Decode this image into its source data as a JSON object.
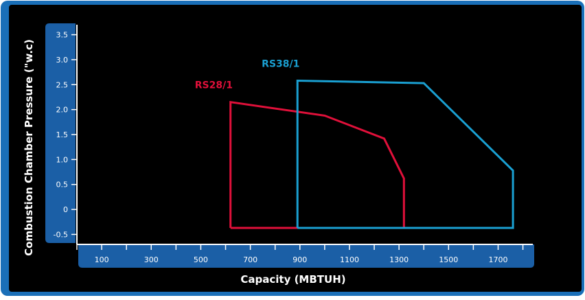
{
  "chart_data": {
    "type": "line",
    "title": "",
    "xlabel": "Capacity (MBTUH)",
    "ylabel": "Combustion Chamber Pressure (\"w.c)",
    "x_ticks": [
      100,
      300,
      500,
      700,
      900,
      1100,
      1300,
      1500,
      1700
    ],
    "y_ticks": [
      -0.5,
      0,
      0.5,
      1.0,
      1.5,
      2.0,
      2.5,
      3.0,
      3.5
    ],
    "y_tick_labels": [
      "-0.5",
      "0",
      "0.5",
      "1.0",
      "1.5",
      "2.0",
      "2.5",
      "3.0",
      "3.5"
    ],
    "xlim": [
      0,
      1840
    ],
    "ylim": [
      -0.7,
      3.7
    ],
    "grid": false,
    "legend": "inline-labels",
    "series": [
      {
        "name": "RS28/1",
        "color": "#e0103a",
        "points": [
          [
            620,
            -0.37
          ],
          [
            620,
            2.15
          ],
          [
            1000,
            1.88
          ],
          [
            1240,
            1.42
          ],
          [
            1320,
            0.62
          ],
          [
            1320,
            -0.37
          ],
          [
            620,
            -0.37
          ]
        ]
      },
      {
        "name": "RS38/1",
        "color": "#1aa0d2",
        "points": [
          [
            890,
            -0.37
          ],
          [
            890,
            2.58
          ],
          [
            1400,
            2.53
          ],
          [
            1760,
            0.78
          ],
          [
            1760,
            -0.37
          ],
          [
            890,
            -0.37
          ]
        ]
      }
    ]
  },
  "colors": {
    "background": "#000000",
    "frame": "#1a6fb8",
    "axis_band": "#1b5fa6"
  }
}
